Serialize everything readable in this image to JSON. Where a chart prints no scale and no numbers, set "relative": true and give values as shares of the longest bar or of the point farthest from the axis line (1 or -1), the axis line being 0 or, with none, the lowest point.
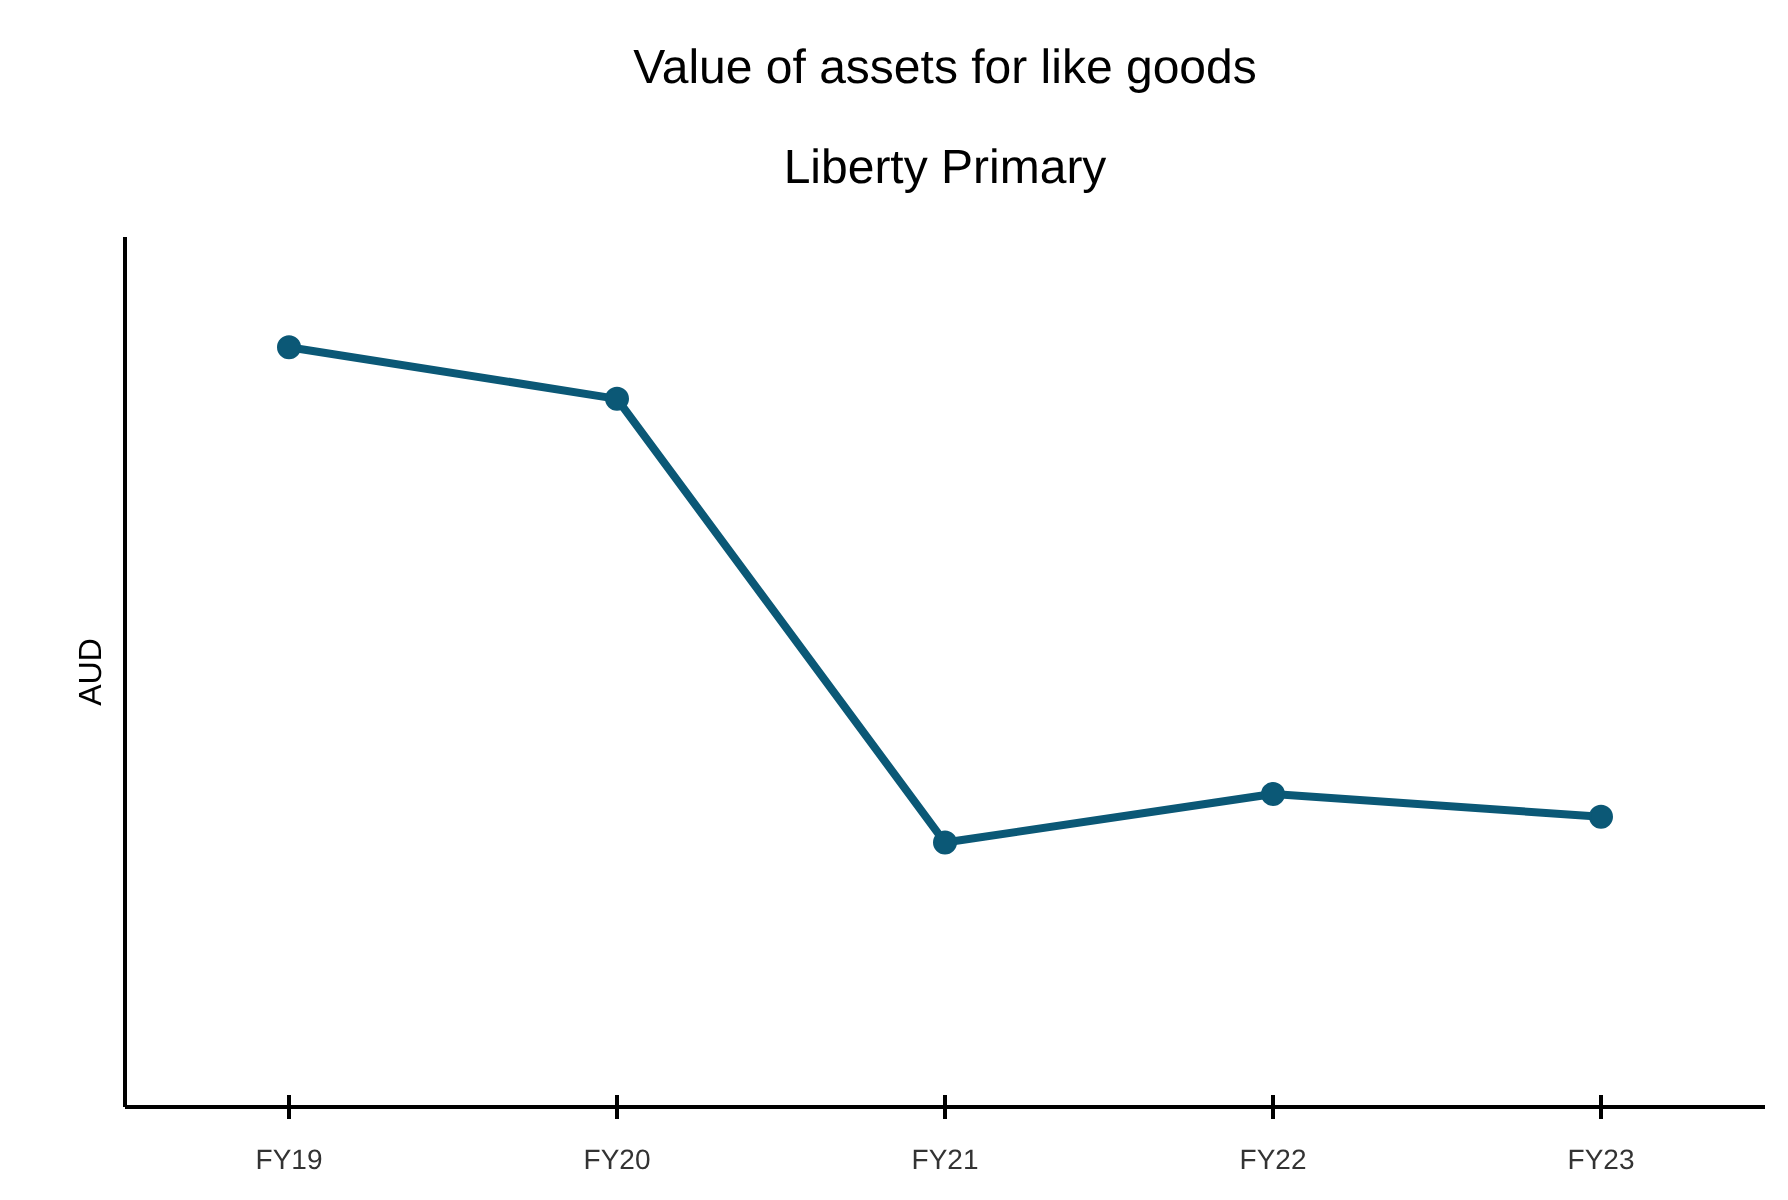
{
  "chart_data": {
    "type": "line",
    "title": "Value of assets for like goods",
    "subtitle": "Liberty Primary",
    "ylabel": "AUD",
    "categories": [
      "FY19",
      "FY20",
      "FY21",
      "FY22",
      "FY23"
    ],
    "series": [
      {
        "color": "#0b5876",
        "values": [
          1,
          0.932,
          0.348,
          0.412,
          0.382
        ]
      }
    ],
    "relative": true,
    "marker": "circle",
    "line_style": "solid"
  }
}
